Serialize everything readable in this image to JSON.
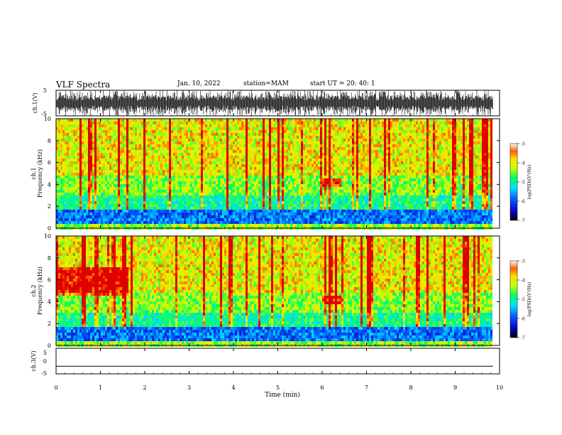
{
  "header": {
    "title": "VLF Spectra",
    "date": "Jan. 10, 2022",
    "station": "station=MAM",
    "start": "start UT = 20: 40: 1"
  },
  "chart_data": [
    {
      "type": "line",
      "panel": "ch1-waveform",
      "ylabel": "ch.1(V)",
      "ylim": [
        -5,
        5
      ],
      "yticks": [
        "5",
        "-5"
      ],
      "xlim": [
        0,
        10
      ],
      "description_values": {
        "signal_range": [
          -5,
          5
        ],
        "data_end_min": 9.85
      }
    },
    {
      "type": "heatmap",
      "panel": "ch1-spectrogram",
      "ylabel_line1": "ch.1",
      "ylabel_line2": "Frequency (kHz)",
      "ylim": [
        0,
        10
      ],
      "yticks": [
        "0",
        "2",
        "4",
        "6",
        "8",
        "10"
      ],
      "xlim": [
        0,
        10
      ],
      "colorbar": {
        "label": "log(PSD)(V²/Hz)",
        "range": [
          -7,
          -3
        ],
        "ticks": [
          "-3",
          "-4",
          "-5",
          "-6",
          "-7"
        ]
      }
    },
    {
      "type": "heatmap",
      "panel": "ch2-spectrogram",
      "ylabel_line1": "ch.2",
      "ylabel_line2": "Frequency (kHz)",
      "ylim": [
        0,
        10
      ],
      "yticks": [
        "0",
        "2",
        "4",
        "6",
        "8",
        "10"
      ],
      "xlim": [
        0,
        10
      ],
      "colorbar": {
        "label": "log(PSD)(V²/Hz)",
        "range": [
          -7,
          -3
        ],
        "ticks": [
          "-3",
          "-4",
          "-5",
          "-6",
          "-7"
        ]
      }
    },
    {
      "type": "line",
      "panel": "ch3-waveform",
      "ylabel": "ch.3(V)",
      "ylim": [
        -5,
        5
      ],
      "yticks": [
        "5",
        "0",
        "-5"
      ],
      "xlim": [
        0,
        10
      ],
      "description_values": {
        "signal_value": -2
      }
    }
  ],
  "xaxis": {
    "label": "Time (min)",
    "ticks": [
      "0",
      "1",
      "2",
      "3",
      "4",
      "5",
      "6",
      "7",
      "8",
      "9",
      "10"
    ]
  },
  "colors": {
    "colormap": [
      "#0a00c8",
      "#0060ff",
      "#00e0ff",
      "#00ff60",
      "#c8ff00",
      "#ffe000",
      "#ff6000",
      "#e00000"
    ]
  }
}
